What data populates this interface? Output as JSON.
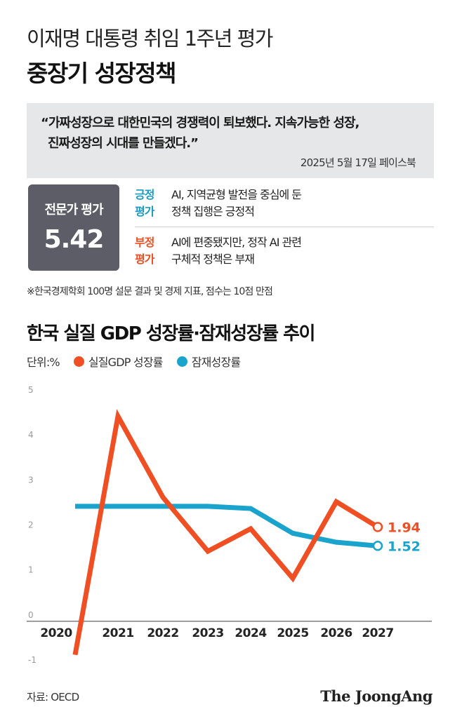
{
  "header": {
    "subtitle": "이재명 대통령 취임 1주년 평가",
    "title": "중장기 성장정책"
  },
  "quote": {
    "line1": "“가짜성장으로 대한민국의 경쟁력이 퇴보했다. 지속가능한 성장,",
    "line2": "진짜성장의 시대를 만들겠다.”",
    "source": "2025년 5월 17일 페이스북"
  },
  "score": {
    "label": "전문가 평가",
    "value": "5.42"
  },
  "evaluations": [
    {
      "tag_line1": "긍정",
      "tag_line2": "평가",
      "text_line1": "AI, 지역균형 발전을 중심에 둔",
      "text_line2": "정책 집행은 긍정적",
      "color": "#1a9bc4"
    },
    {
      "tag_line1": "부정",
      "tag_line2": "평가",
      "text_line1": "AI에 편중됐지만, 정작 AI 관련",
      "text_line2": "구체적 정책은 부재",
      "color": "#f04e23"
    }
  ],
  "note": "※한국경제학회 100명 설문 결과 및 경제 지표, 점수는 10점 만점",
  "legend": {
    "unit": "단위:%"
  },
  "colors": {
    "real": "#f04e23",
    "potential": "#1aa3cc"
  },
  "chart_data": {
    "type": "line",
    "title": "한국 실질 GDP 성장률·잠재성장률 추이",
    "categories": [
      "2020",
      "2021",
      "2022",
      "2023",
      "2024",
      "2025",
      "2026",
      "2027"
    ],
    "ylim": [
      -1,
      5
    ],
    "yticks": [
      "-1",
      "0",
      "1",
      "2",
      "3",
      "4",
      "5"
    ],
    "grid": false,
    "series": [
      {
        "name": "실질GDP 성장률",
        "values": [
          -0.9,
          4.4,
          2.6,
          1.4,
          1.9,
          0.8,
          2.5,
          1.94
        ],
        "end_label": "1.94"
      },
      {
        "name": "잠재성장률",
        "values": [
          2.4,
          2.4,
          2.4,
          2.4,
          2.35,
          1.8,
          1.6,
          1.52
        ],
        "end_label": "1.52"
      }
    ]
  },
  "footer": {
    "source": "자료: OECD",
    "logo": "The JoongAng"
  }
}
